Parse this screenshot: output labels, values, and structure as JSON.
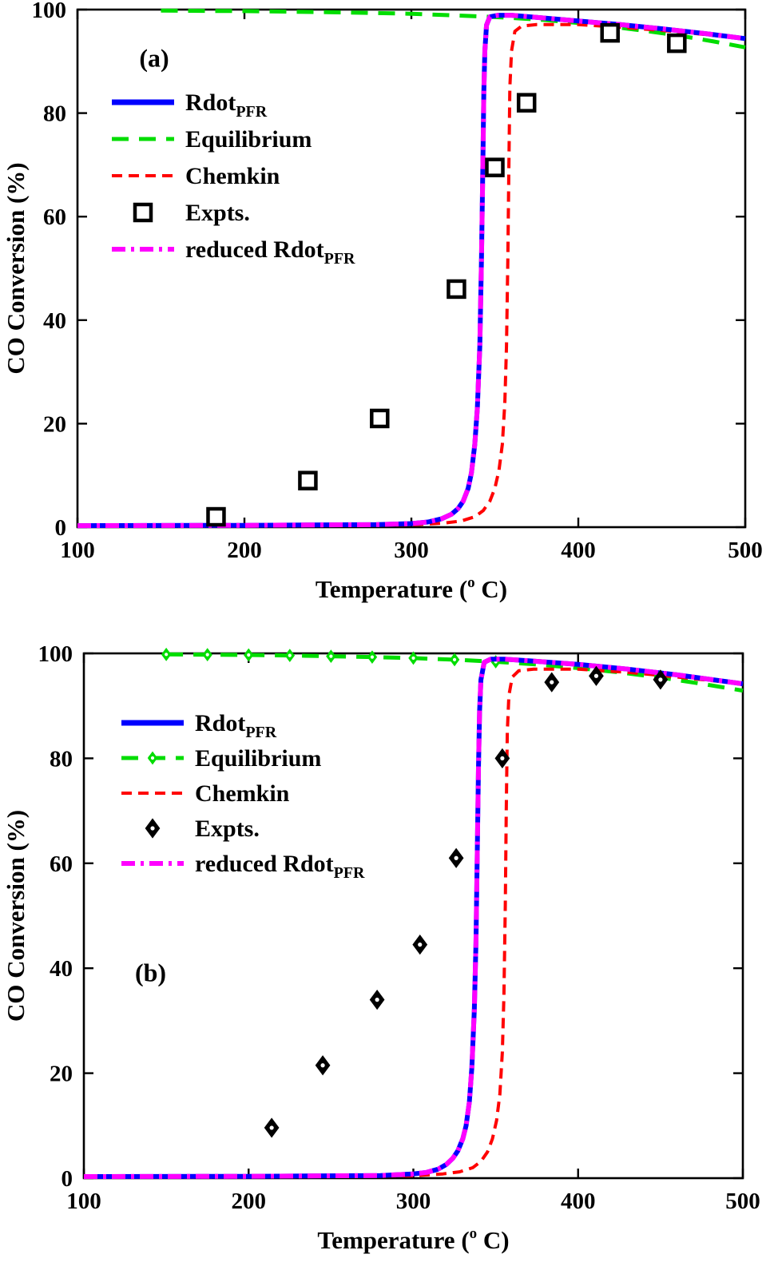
{
  "figure": {
    "background": "#ffffff",
    "description": "Two stacked line charts of CO Conversion vs Temperature"
  },
  "chart_data": [
    {
      "panel": "a",
      "type": "line",
      "title": "",
      "xlabel": {
        "text": "Temperature (",
        "sup": "o",
        "tail": " C)"
      },
      "ylabel": "CO Conversion (%)",
      "xlim": [
        100,
        500
      ],
      "ylim": [
        0,
        100
      ],
      "xticks": [
        100,
        200,
        300,
        400,
        500
      ],
      "yticks": [
        0,
        20,
        40,
        60,
        80,
        100
      ],
      "grid": false,
      "legend_position": "upper-left",
      "panel_label": {
        "text": "(a)",
        "x": 137,
        "y": 89
      },
      "series": [
        {
          "id": "equilibrium",
          "name": "Equilibrium",
          "color": "#00dd00",
          "width": 5,
          "dash": "long",
          "x": [
            150,
            200,
            250,
            300,
            340,
            360,
            380,
            400,
            420,
            440,
            460,
            480,
            500
          ],
          "y": [
            99.8,
            99.7,
            99.5,
            99.2,
            98.7,
            98.4,
            98.0,
            97.4,
            96.7,
            95.9,
            95.0,
            93.9,
            92.7
          ]
        },
        {
          "id": "chemkin",
          "name": "Chemkin",
          "color": "#ff0000",
          "width": 4,
          "dash": "short",
          "x": [
            100,
            200,
            300,
            320,
            330,
            338,
            343,
            347,
            350,
            352.5,
            354.5,
            356,
            357,
            357.8,
            358.4,
            359,
            360,
            362,
            366,
            375,
            400,
            430,
            460,
            500
          ],
          "y": [
            0.15,
            0.2,
            0.45,
            0.8,
            1.2,
            2,
            3.2,
            5,
            7.5,
            11,
            16,
            24,
            35,
            52,
            70,
            85,
            92,
            95.8,
            96.8,
            97.1,
            97.1,
            96.5,
            95.7,
            94.4
          ]
        },
        {
          "id": "rdot-pfr",
          "name": "Rdot_PFR",
          "color": "#0000ff",
          "width": 6,
          "dash": "solid",
          "x": [
            100,
            200,
            280,
            300,
            310,
            318,
            324,
            328,
            331,
            334,
            336,
            338,
            339.5,
            341,
            342,
            342.8,
            343.4,
            344,
            345,
            347,
            352,
            360,
            375,
            400,
            425,
            450,
            475,
            500
          ],
          "y": [
            0.3,
            0.35,
            0.5,
            0.7,
            1.0,
            1.6,
            2.5,
            3.6,
            5,
            7.5,
            10.5,
            16,
            23,
            35,
            52,
            70,
            84,
            92,
            97,
            98.6,
            98.9,
            98.9,
            98.5,
            97.8,
            97.1,
            96.3,
            95.4,
            94.4
          ]
        },
        {
          "id": "reduced-rdot-pfr",
          "name": "reduced Rdot_PFR",
          "color": "#ff00ff",
          "width": 6,
          "dash": "dashdot",
          "x": [
            100,
            200,
            280,
            300,
            310,
            318,
            324,
            328,
            331,
            334,
            336,
            338,
            339.5,
            341,
            342,
            342.8,
            343.4,
            344,
            345,
            347,
            352,
            360,
            375,
            400,
            425,
            450,
            475,
            500
          ],
          "y": [
            0.3,
            0.35,
            0.5,
            0.7,
            1.0,
            1.6,
            2.5,
            3.6,
            5,
            7.5,
            10.5,
            16,
            23,
            35,
            52,
            70,
            84,
            92,
            97,
            98.6,
            98.9,
            98.9,
            98.5,
            97.8,
            97.1,
            96.3,
            95.4,
            94.4
          ]
        },
        {
          "id": "expts",
          "name": "Expts.",
          "color": "#000000",
          "marker": "square",
          "points": [
            [
              183,
              2
            ],
            [
              238,
              9
            ],
            [
              281,
              21
            ],
            [
              327,
              46
            ],
            [
              350,
              69.5
            ],
            [
              369,
              82
            ],
            [
              419,
              95.5
            ],
            [
              459,
              93.5
            ]
          ]
        }
      ],
      "legend": [
        {
          "label": "Rdot",
          "sub": "PFR",
          "kind": "line",
          "color": "#0000ff",
          "dash": "solid",
          "width": 7
        },
        {
          "label": "Equilibrium",
          "kind": "line",
          "color": "#00dd00",
          "dash": "long",
          "width": 5
        },
        {
          "label": "Chemkin",
          "kind": "line",
          "color": "#ff0000",
          "dash": "short",
          "width": 4
        },
        {
          "label": "Expts.",
          "kind": "marker",
          "marker": "square",
          "color": "#000000"
        },
        {
          "label": "reduced Rdot",
          "sub": "PFR",
          "kind": "line",
          "color": "#ff00ff",
          "dash": "dashdot",
          "width": 6
        }
      ]
    },
    {
      "panel": "b",
      "type": "line",
      "title": "",
      "xlabel": {
        "text": "Temperature (",
        "sup": "o",
        "tail": " C)"
      },
      "ylabel": "CO Conversion (%)",
      "xlim": [
        100,
        500
      ],
      "ylim": [
        0,
        100
      ],
      "xticks": [
        100,
        200,
        300,
        400,
        500
      ],
      "yticks": [
        0,
        20,
        40,
        60,
        80,
        100
      ],
      "grid": false,
      "legend_position": "upper-left",
      "panel_label": {
        "text": "(b)",
        "x": 131,
        "y": 37.5
      },
      "series": [
        {
          "id": "equilibrium",
          "name": "Equilibrium",
          "color": "#00dd00",
          "width": 5,
          "dash": "long",
          "x": [
            150,
            175,
            200,
            225,
            250,
            275,
            300,
            325,
            350,
            375,
            400,
            425,
            450,
            475,
            500
          ],
          "y": [
            99.8,
            99.75,
            99.7,
            99.6,
            99.45,
            99.3,
            99.1,
            98.8,
            98.4,
            97.9,
            97.2,
            96.4,
            95.4,
            94.2,
            92.9
          ],
          "marker": "diamond",
          "marker_points": [
            [
              150,
              99.8
            ],
            [
              175,
              99.75
            ],
            [
              200,
              99.7
            ],
            [
              225,
              99.6
            ],
            [
              250,
              99.45
            ],
            [
              275,
              99.3
            ],
            [
              300,
              99.1
            ],
            [
              325,
              98.8
            ],
            [
              350,
              98.4
            ]
          ]
        },
        {
          "id": "chemkin",
          "name": "Chemkin",
          "color": "#ff0000",
          "width": 4,
          "dash": "short",
          "x": [
            100,
            200,
            300,
            318,
            328,
            336,
            341,
            345,
            348,
            350.5,
            352.5,
            354,
            355,
            355.8,
            356.4,
            357,
            358,
            360,
            364,
            373,
            400,
            430,
            460,
            500
          ],
          "y": [
            0.15,
            0.2,
            0.45,
            0.8,
            1.2,
            2,
            3.2,
            5,
            7.5,
            11,
            16,
            24,
            35,
            52,
            70,
            85,
            92,
            95.5,
            96.7,
            97.0,
            97.0,
            96.4,
            95.5,
            94.2
          ]
        },
        {
          "id": "rdot-pfr",
          "name": "Rdot_PFR",
          "color": "#0000ff",
          "width": 6,
          "dash": "solid",
          "x": [
            100,
            200,
            280,
            300,
            308,
            315,
            320,
            324,
            327,
            330,
            332,
            334,
            335.5,
            337,
            338,
            338.8,
            339.5,
            340.2,
            341,
            343,
            347,
            355,
            370,
            400,
            430,
            460,
            500
          ],
          "y": [
            0.3,
            0.35,
            0.5,
            0.8,
            1.1,
            1.7,
            2.6,
            3.8,
            5.2,
            7.5,
            10,
            14.5,
            21,
            32,
            45,
            62,
            78,
            89,
            95,
            98.3,
            98.9,
            98.9,
            98.6,
            97.9,
            97.0,
            95.9,
            94.2
          ]
        },
        {
          "id": "reduced-rdot-pfr",
          "name": "reduced Rdot_PFR",
          "color": "#ff00ff",
          "width": 6,
          "dash": "dashdot",
          "x": [
            100,
            200,
            280,
            300,
            308,
            315,
            320,
            324,
            327,
            330,
            332,
            334,
            335.5,
            337,
            338,
            338.8,
            339.5,
            340.2,
            341,
            343,
            347,
            355,
            370,
            400,
            430,
            460,
            500
          ],
          "y": [
            0.3,
            0.35,
            0.5,
            0.8,
            1.1,
            1.7,
            2.6,
            3.8,
            5.2,
            7.5,
            10,
            14.5,
            21,
            32,
            45,
            62,
            78,
            89,
            95,
            98.3,
            98.9,
            98.9,
            98.6,
            97.9,
            97.0,
            95.9,
            94.2
          ]
        },
        {
          "id": "expts",
          "name": "Expts.",
          "color": "#000000",
          "marker": "diamond",
          "points": [
            [
              214,
              9.6
            ],
            [
              245,
              21.5
            ],
            [
              278,
              34
            ],
            [
              304,
              44.5
            ],
            [
              326,
              61
            ],
            [
              354,
              80
            ],
            [
              384,
              94.5
            ],
            [
              411,
              95.7
            ],
            [
              450,
              95
            ]
          ]
        }
      ],
      "legend": [
        {
          "label": "Rdot",
          "sub": "PFR",
          "kind": "line",
          "color": "#0000ff",
          "dash": "solid",
          "width": 7
        },
        {
          "label": "Equilibrium",
          "kind": "line",
          "color": "#00dd00",
          "dash": "long",
          "width": 5,
          "marker": "diamond"
        },
        {
          "label": "Chemkin",
          "kind": "line",
          "color": "#ff0000",
          "dash": "short",
          "width": 4
        },
        {
          "label": "Expts.",
          "kind": "marker",
          "marker": "diamond",
          "color": "#000000"
        },
        {
          "label": "reduced Rdot",
          "sub": "PFR",
          "kind": "line",
          "color": "#ff00ff",
          "dash": "dashdot",
          "width": 6
        }
      ]
    }
  ]
}
